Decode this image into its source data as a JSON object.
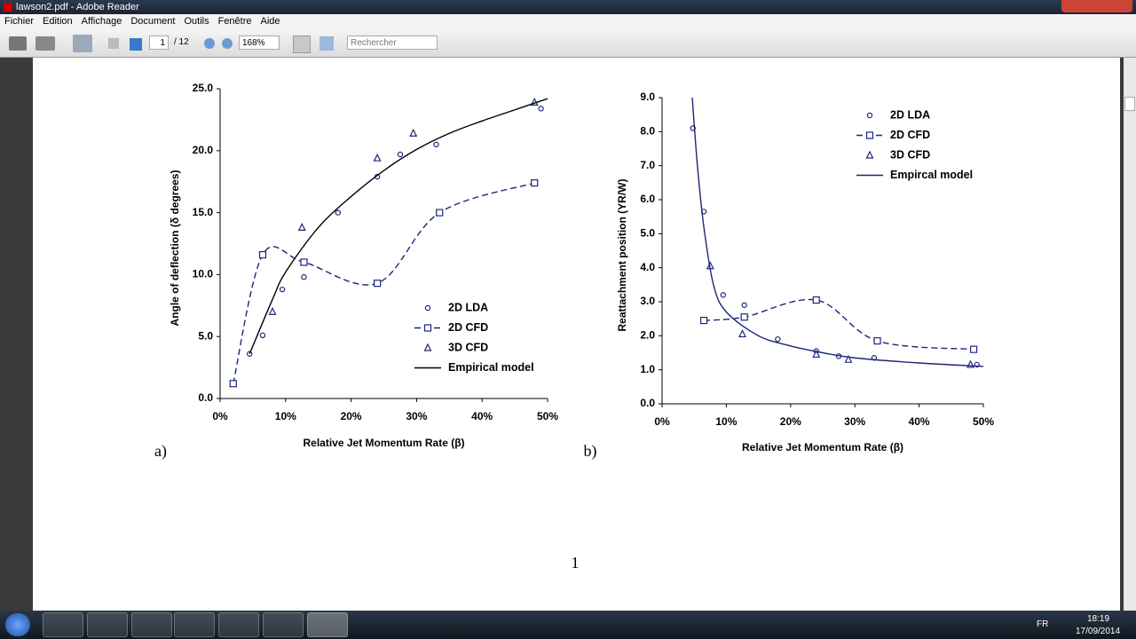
{
  "window": {
    "title": "lawson2.pdf - Adobe Reader"
  },
  "menu": [
    "Fichier",
    "Edition",
    "Affichage",
    "Document",
    "Outils",
    "Fenêtre",
    "Aide"
  ],
  "toolbar": {
    "page": "1",
    "page_count": "/ 12",
    "zoom": "168%",
    "search": "Rechercher"
  },
  "chart_data": [
    {
      "type": "scatter",
      "x_label": "Relative Jet Momentum Rate (β)",
      "y_label": "Angle of deflection    (δ degrees)",
      "xlim": [
        0,
        50
      ],
      "xticks": [
        {
          "value": 0,
          "label": "0%"
        },
        {
          "value": 10,
          "label": "10%"
        },
        {
          "value": 20,
          "label": "20%"
        },
        {
          "value": 30,
          "label": "30%"
        },
        {
          "value": 40,
          "label": "40%"
        },
        {
          "value": 50,
          "label": "50%"
        }
      ],
      "ylim": [
        0,
        25
      ],
      "yticks": [
        {
          "value": 0,
          "label": "0.0"
        },
        {
          "value": 5,
          "label": "5.0"
        },
        {
          "value": 10,
          "label": "10.0"
        },
        {
          "value": 15,
          "label": "15.0"
        },
        {
          "value": 20,
          "label": "20.0"
        },
        {
          "value": 25,
          "label": "25.0"
        }
      ],
      "legend": "lower right",
      "series": [
        {
          "name": "2D LDA",
          "color": "#1c2778",
          "marker": "circle",
          "line": "none",
          "x": [
            4.5,
            6.5,
            9.5,
            12.8,
            18,
            24,
            27.5,
            33,
            49
          ],
          "values": [
            3.6,
            5.1,
            8.8,
            9.8,
            15.0,
            17.9,
            19.7,
            20.5,
            23.4
          ]
        },
        {
          "name": "2D CFD",
          "color": "#1c2778",
          "marker": "square",
          "line": "dashed",
          "x": [
            2,
            6.5,
            12.8,
            24,
            33.5,
            48
          ],
          "values": [
            1.2,
            11.6,
            11.0,
            9.3,
            15.0,
            17.4
          ]
        },
        {
          "name": "3D CFD",
          "color": "#1c2778",
          "marker": "triangle",
          "line": "none",
          "x": [
            8,
            12.5,
            24,
            29.5,
            48
          ],
          "values": [
            7.0,
            13.8,
            19.4,
            21.4,
            23.9
          ]
        },
        {
          "name": "Empirical model",
          "color": "#000000",
          "marker": "none",
          "line": "solid",
          "x": [
            4.5,
            8,
            10,
            15,
            20,
            25,
            30,
            35,
            40,
            45,
            50
          ],
          "values": [
            3.6,
            8.0,
            10.2,
            13.8,
            16.3,
            18.4,
            20.1,
            21.4,
            22.4,
            23.3,
            24.2
          ]
        }
      ]
    },
    {
      "type": "scatter",
      "x_label": "Relative Jet Momentum Rate (β)",
      "y_label": "Reattachment position (YR/W)",
      "xlim": [
        0,
        50
      ],
      "xticks": [
        {
          "value": 0,
          "label": "0%"
        },
        {
          "value": 10,
          "label": "10%"
        },
        {
          "value": 20,
          "label": "20%"
        },
        {
          "value": 30,
          "label": "30%"
        },
        {
          "value": 40,
          "label": "40%"
        },
        {
          "value": 50,
          "label": "50%"
        }
      ],
      "ylim": [
        0,
        9
      ],
      "yticks": [
        {
          "value": 0,
          "label": "0.0"
        },
        {
          "value": 1,
          "label": "1.0"
        },
        {
          "value": 2,
          "label": "2.0"
        },
        {
          "value": 3,
          "label": "3.0"
        },
        {
          "value": 4,
          "label": "4.0"
        },
        {
          "value": 5,
          "label": "5.0"
        },
        {
          "value": 6,
          "label": "6.0"
        },
        {
          "value": 7,
          "label": "7.0"
        },
        {
          "value": 8,
          "label": "8.0"
        },
        {
          "value": 9,
          "label": "9.0"
        }
      ],
      "legend": "upper right",
      "series": [
        {
          "name": "2D LDA",
          "color": "#1c2778",
          "marker": "circle",
          "line": "none",
          "x": [
            4.8,
            6.5,
            9.5,
            12.8,
            18,
            24,
            27.5,
            33,
            49
          ],
          "values": [
            8.1,
            5.65,
            3.2,
            2.9,
            1.9,
            1.55,
            1.4,
            1.35,
            1.15
          ]
        },
        {
          "name": "2D CFD",
          "color": "#1c2778",
          "marker": "square",
          "line": "dashed",
          "x": [
            6.5,
            12.8,
            24,
            33.5,
            48.5
          ],
          "values": [
            2.45,
            2.55,
            3.05,
            1.85,
            1.6
          ]
        },
        {
          "name": "3D CFD",
          "color": "#1c2778",
          "marker": "triangle",
          "line": "none",
          "x": [
            7.5,
            12.5,
            24,
            29,
            48
          ],
          "values": [
            4.05,
            2.05,
            1.45,
            1.3,
            1.15
          ]
        },
        {
          "name": "Empircal model",
          "color": "#1c2778",
          "marker": "none",
          "line": "solid",
          "x": [
            4.7,
            5.5,
            6.5,
            8,
            10,
            15,
            20,
            25,
            30,
            40,
            50
          ],
          "values": [
            9.0,
            7.0,
            5.2,
            3.5,
            2.7,
            2.0,
            1.7,
            1.5,
            1.35,
            1.2,
            1.1
          ]
        }
      ]
    }
  ],
  "document": {
    "panel_labels": [
      "a)",
      "b)"
    ],
    "page_number": "1"
  },
  "taskbar": {
    "language": "FR",
    "time": "18:19",
    "date": "17/09/2014"
  }
}
